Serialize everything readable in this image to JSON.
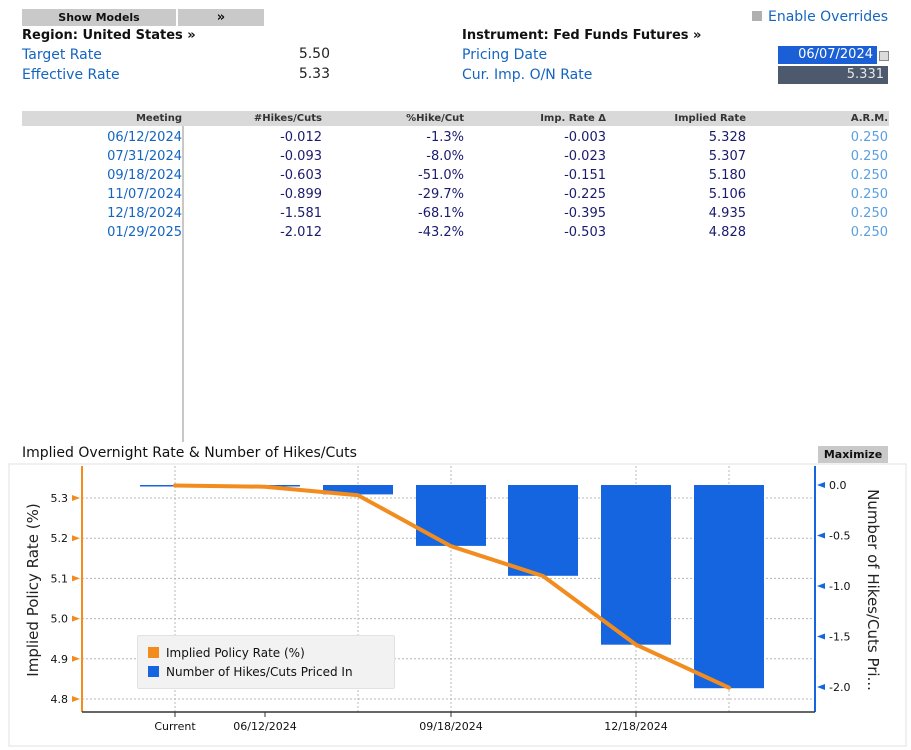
{
  "toolbar": {
    "show_models_label": "Show Models",
    "expand_label": "»",
    "enable_overrides_label": "Enable Overrides"
  },
  "settings": {
    "region_label": "Region: United States »",
    "target_rate_label": "Target Rate",
    "target_rate_value": "5.50",
    "effective_rate_label": "Effective Rate",
    "effective_rate_value": "5.33",
    "instrument_label": "Instrument: Fed Funds Futures »",
    "pricing_date_label": "Pricing Date",
    "pricing_date_value": "06/07/2024",
    "cur_imp_label": "Cur. Imp. O/N Rate",
    "cur_imp_value": "5.331"
  },
  "table": {
    "headers": {
      "meeting": "Meeting",
      "hikes_cuts": "#Hikes/Cuts",
      "pct_hike_cut": "%Hike/Cut",
      "imp_rate_delta": "Imp. Rate Δ",
      "implied_rate": "Implied Rate",
      "arm": "A.R.M."
    },
    "rows": [
      {
        "meeting": "06/12/2024",
        "hikes": "-0.012",
        "pct": "-1.3%",
        "delta": "-0.003",
        "implied": "5.328",
        "arm": "0.250"
      },
      {
        "meeting": "07/31/2024",
        "hikes": "-0.093",
        "pct": "-8.0%",
        "delta": "-0.023",
        "implied": "5.307",
        "arm": "0.250"
      },
      {
        "meeting": "09/18/2024",
        "hikes": "-0.603",
        "pct": "-51.0%",
        "delta": "-0.151",
        "implied": "5.180",
        "arm": "0.250"
      },
      {
        "meeting": "11/07/2024",
        "hikes": "-0.899",
        "pct": "-29.7%",
        "delta": "-0.225",
        "implied": "5.106",
        "arm": "0.250"
      },
      {
        "meeting": "12/18/2024",
        "hikes": "-1.581",
        "pct": "-68.1%",
        "delta": "-0.395",
        "implied": "4.935",
        "arm": "0.250"
      },
      {
        "meeting": "01/29/2025",
        "hikes": "-2.012",
        "pct": "-43.2%",
        "delta": "-0.503",
        "implied": "4.828",
        "arm": "0.250"
      }
    ]
  },
  "chart_panel": {
    "maximize_label": "Maximize"
  },
  "chart_data": {
    "type": "bar",
    "title": "Implied Overnight Rate & Number of Hikes/Cuts",
    "x_tick_labels": [
      "Current",
      "06/12/2024",
      "09/18/2024",
      "12/18/2024"
    ],
    "categories": [
      "Current",
      "06/12/2024",
      "07/31/2024",
      "09/18/2024",
      "11/07/2024",
      "12/18/2024",
      "01/29/2025"
    ],
    "ylabel_left": "Implied Policy Rate (%)",
    "ylabel_right": "Number of Hikes/Cuts Pri...",
    "y_left_ticks": [
      "5.3",
      "5.2",
      "5.1",
      "5.0",
      "4.9",
      "4.8"
    ],
    "y_right_ticks": [
      "0.0",
      "-0.5",
      "-1.0",
      "-1.5",
      "-2.0"
    ],
    "ylim_left": [
      4.78,
      5.36
    ],
    "ylim_right": [
      -2.12,
      0.12
    ],
    "series": [
      {
        "name": "Implied Policy Rate (%)",
        "type": "line",
        "axis": "left",
        "color": "#f28c1e",
        "values": [
          5.331,
          5.328,
          5.307,
          5.18,
          5.106,
          4.935,
          4.828
        ]
      },
      {
        "name": "Number of Hikes/Cuts Priced In",
        "type": "bar",
        "axis": "right",
        "color": "#1565e0",
        "values": [
          0.0,
          -0.012,
          -0.093,
          -0.603,
          -0.899,
          -1.581,
          -2.012
        ]
      }
    ],
    "legend_position": "bottom-left",
    "grid": true
  }
}
